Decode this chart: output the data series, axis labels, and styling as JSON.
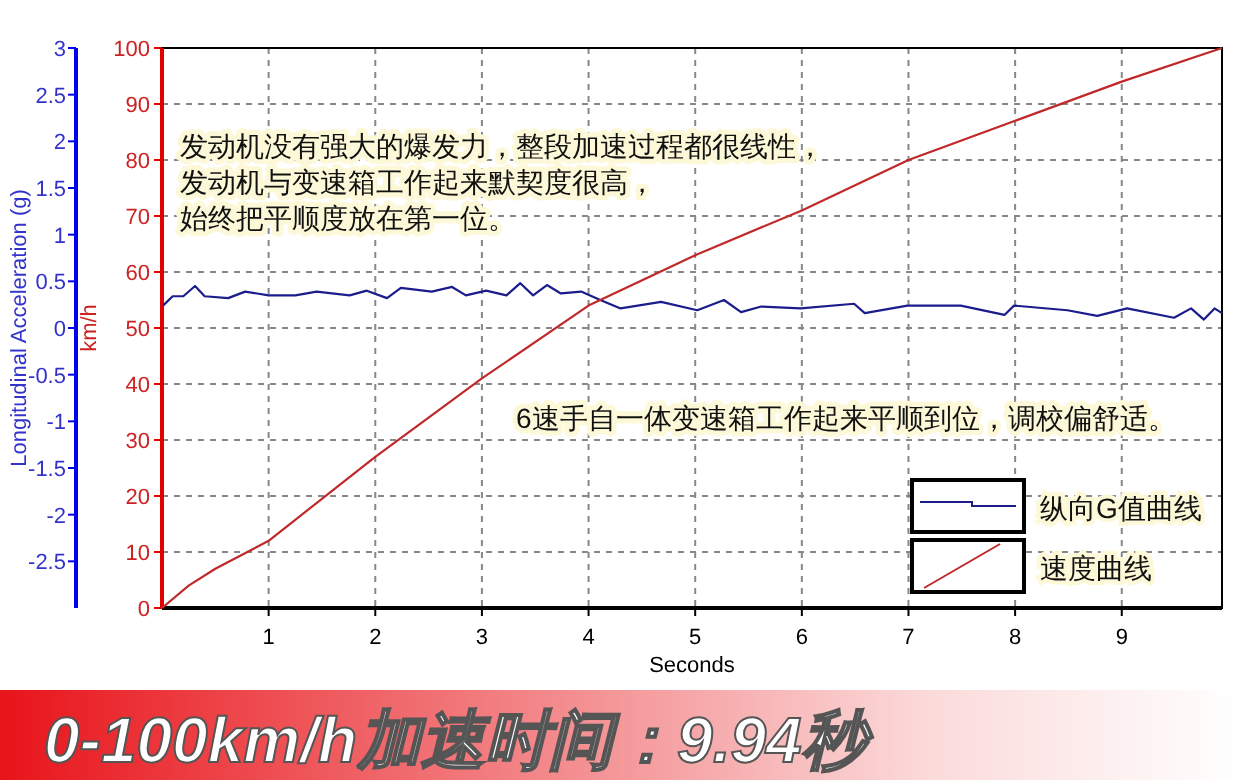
{
  "chart_data": {
    "type": "line",
    "title": "0-100km/h加速时间：9.94秒",
    "xlabel": "Seconds",
    "ylabel": "Longitudinal Acceleration (g)",
    "y2label": "km/h",
    "xlim": [
      0,
      9.94
    ],
    "xticks": [
      1,
      2,
      3,
      4,
      5,
      6,
      7,
      8,
      9
    ],
    "ylim": [
      -3,
      3
    ],
    "yticks": [
      -2.5,
      -2,
      -1.5,
      -1,
      -0.5,
      0,
      0.5,
      1,
      1.5,
      2,
      2.5,
      3
    ],
    "y2lim": [
      0,
      100
    ],
    "y2ticks": [
      0,
      10,
      20,
      30,
      40,
      50,
      60,
      70,
      80,
      90,
      100
    ],
    "grid": true,
    "legend": "bottom right",
    "line_style": "solid",
    "marker": "none",
    "annotations": [
      "发动机没有强大的爆发力，整段加速过程都很线性，",
      "发动机与变速箱工作起来默契度很高，",
      "始终把平顺度放在第一位。",
      "6速手自一体变速箱工作起来平顺到位，调校偏舒适。"
    ],
    "series": [
      {
        "name": "纵向G值曲线",
        "color": "#1c1c8c",
        "axis": "y",
        "x": [
          0.01,
          0.1,
          0.2,
          0.31,
          0.4,
          0.62,
          0.78,
          1.0,
          1.25,
          1.45,
          1.76,
          1.92,
          2.11,
          2.24,
          2.53,
          2.72,
          2.85,
          3.04,
          3.23,
          3.36,
          3.48,
          3.61,
          3.74,
          3.93,
          4.11,
          4.3,
          4.68,
          5.02,
          5.27,
          5.43,
          5.62,
          5.99,
          6.49,
          6.59,
          6.99,
          7.49,
          7.9,
          7.99,
          8.49,
          8.77,
          9.05,
          9.49,
          9.65,
          9.77,
          9.87,
          9.94
        ],
        "values": [
          0.24,
          0.34,
          0.34,
          0.45,
          0.34,
          0.32,
          0.39,
          0.35,
          0.35,
          0.39,
          0.35,
          0.4,
          0.32,
          0.43,
          0.39,
          0.44,
          0.35,
          0.4,
          0.35,
          0.48,
          0.35,
          0.46,
          0.37,
          0.39,
          0.3,
          0.21,
          0.28,
          0.19,
          0.3,
          0.17,
          0.23,
          0.21,
          0.26,
          0.16,
          0.24,
          0.24,
          0.14,
          0.24,
          0.19,
          0.13,
          0.21,
          0.11,
          0.21,
          0.09,
          0.21,
          0.16
        ]
      },
      {
        "name": "速度曲线",
        "color": "#c0282a",
        "axis": "y2",
        "x": [
          0,
          0.25,
          0.5,
          1,
          2,
          3,
          4,
          5,
          6,
          7,
          8,
          9,
          9.94
        ],
        "values": [
          0,
          4,
          7,
          12,
          27,
          41,
          54,
          63,
          71,
          80,
          87,
          94,
          100
        ]
      }
    ]
  }
}
